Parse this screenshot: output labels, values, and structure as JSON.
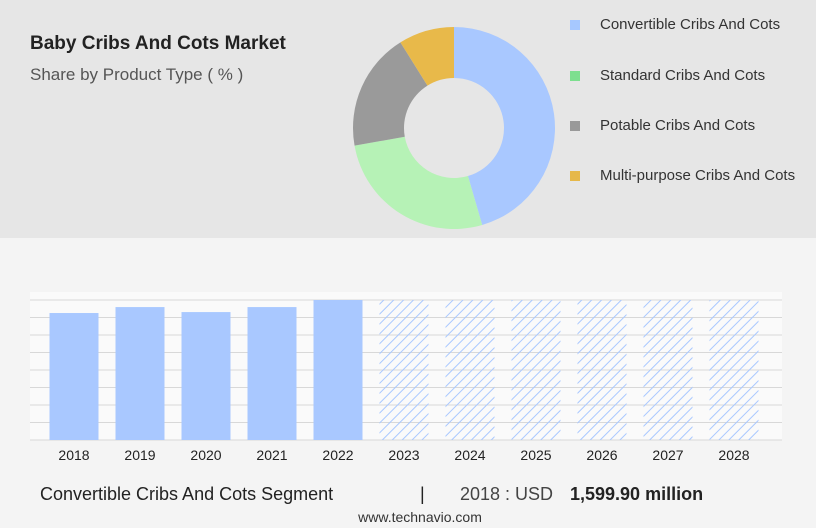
{
  "chart_data": [
    {
      "type": "donut",
      "title": "Baby Cribs And Cots Market",
      "subtitle": "Share by Product Type ( % )",
      "categories": [
        "Convertible Cribs And Cots",
        "Standard Cribs And Cots",
        "Potable Cribs And Cots",
        "Multi-purpose Cribs And Cots"
      ],
      "values": [
        45.5,
        26.7,
        18.9,
        8.9
      ],
      "colors": [
        "#a9c8ff",
        "#b6f2b6",
        "#9a9a9a",
        "#e8b94a"
      ],
      "legend_colors": [
        "#a6c8ff",
        "#7ddf8f",
        "#999999",
        "#e6b84a"
      ]
    },
    {
      "type": "bar",
      "categories": [
        "2018",
        "2019",
        "2020",
        "2021",
        "2022",
        "2023",
        "2024",
        "2025",
        "2026",
        "2027",
        "2028"
      ],
      "values": [
        1599.9,
        1675,
        1612,
        1675,
        1764,
        null,
        null,
        null,
        null,
        null,
        null
      ],
      "color": "#a9c8ff",
      "ylim": [
        0,
        1764
      ],
      "grid": true
    }
  ],
  "footer": {
    "segment": "Convertible Cribs And Cots Segment",
    "separator": "|",
    "year_label": "2018 : USD",
    "value": "1,599.90 million",
    "source": "www.technavio.com"
  }
}
